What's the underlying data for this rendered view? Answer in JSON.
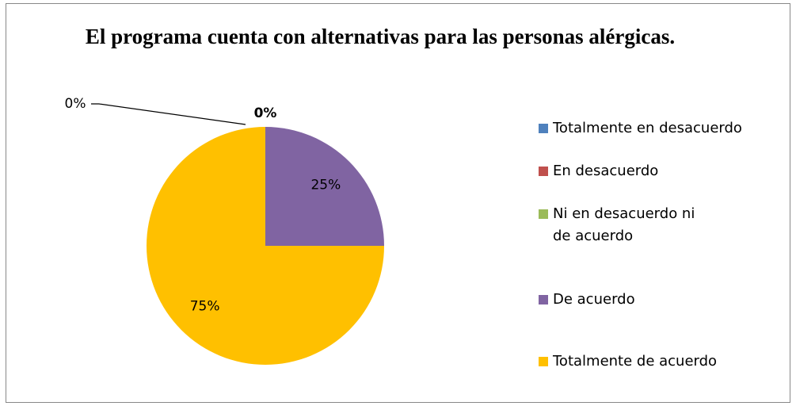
{
  "chart_data": {
    "type": "pie",
    "title": "El programa cuenta con alternativas para las personas alérgicas.",
    "categories": [
      "Totalmente en desacuerdo",
      "En desacuerdo",
      "Ni en desacuerdo ni de acuerdo",
      "De acuerdo",
      "Totalmente de acuerdo"
    ],
    "values": [
      0,
      0,
      0,
      25,
      75
    ],
    "value_labels": [
      "0%",
      "0%",
      null,
      "25%",
      "75%"
    ],
    "colors": [
      "#4f81bd",
      "#c0504d",
      "#9bbb59",
      "#8064a2",
      "#ffc000"
    ],
    "legend": "right"
  }
}
